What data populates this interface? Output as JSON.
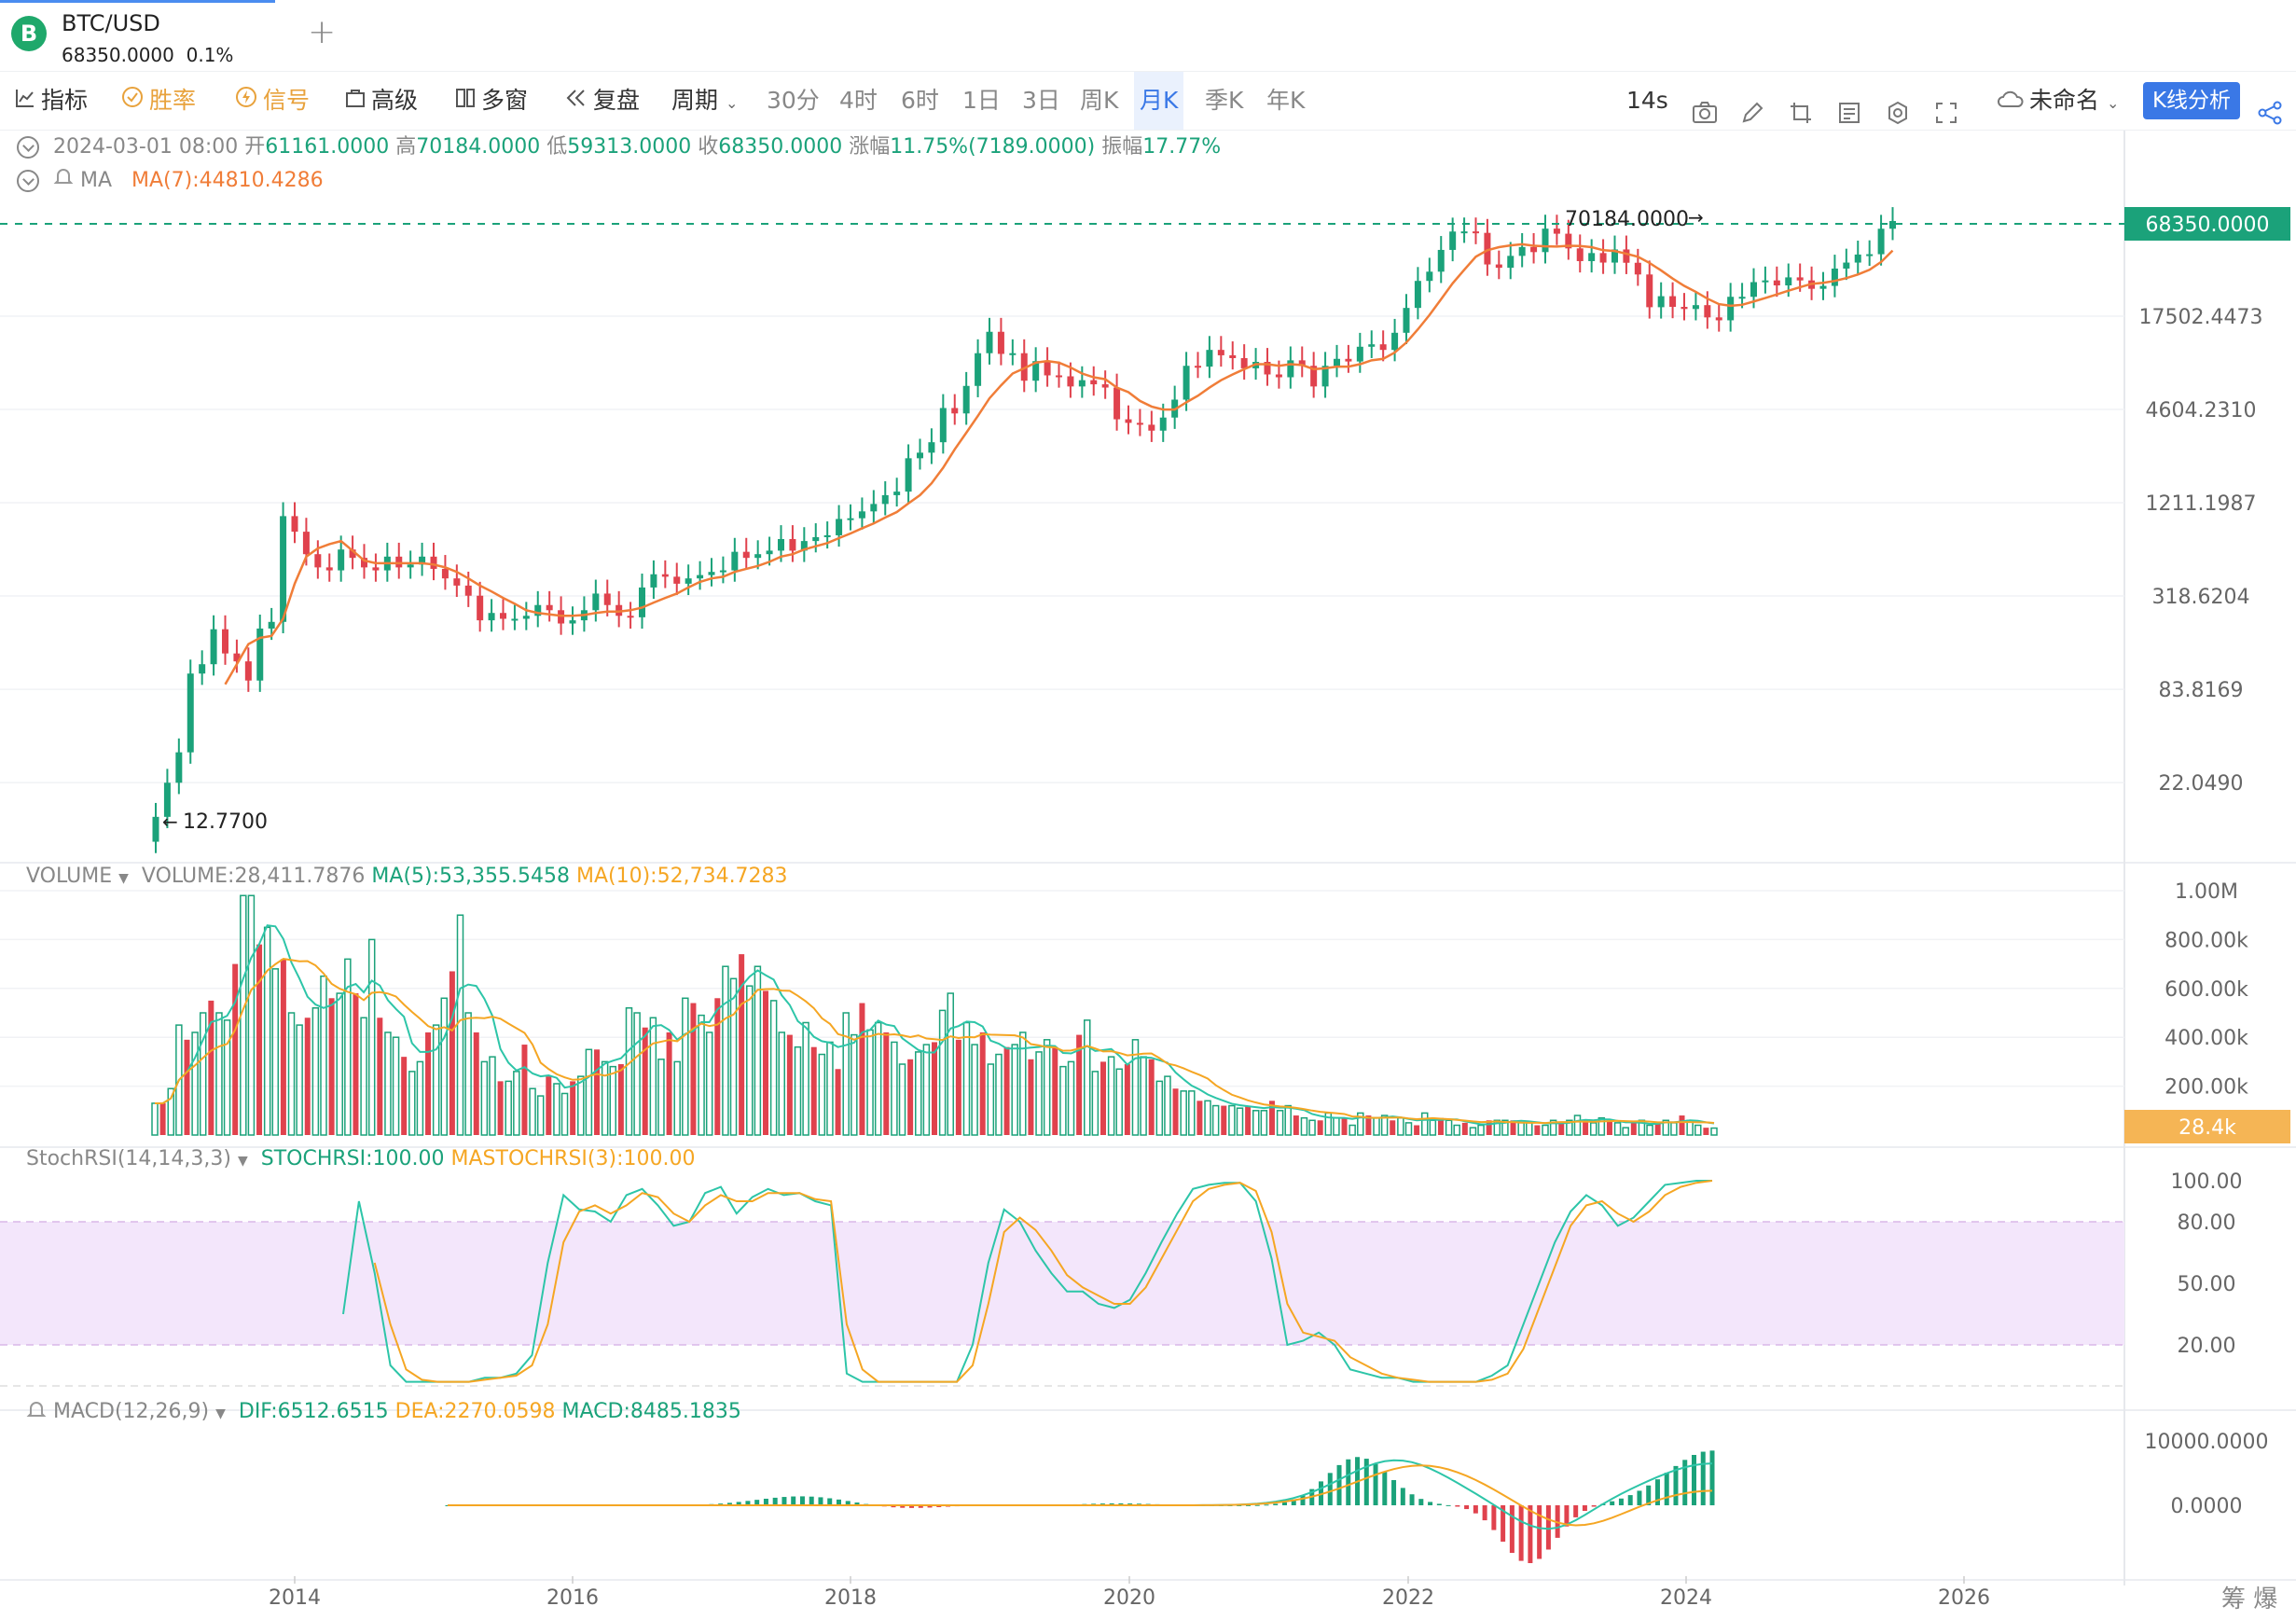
{
  "tab": {
    "symbol": "BTC/USD",
    "price": "68350.0000",
    "change": "0.1%",
    "logo": "B",
    "add_icon": "+"
  },
  "toolbar": {
    "indicators": "指标",
    "winrate": "胜率",
    "signal": "信号",
    "advanced": "高级",
    "multiwin": "多窗",
    "replay": "复盘",
    "period": "周期",
    "intervals": [
      "30分",
      "4时",
      "6时",
      "1日",
      "3日",
      "周K",
      "月K",
      "季K",
      "年K"
    ],
    "active_interval": "月K",
    "countdown": "14s",
    "layout_name": "未命名",
    "kline_btn": "K线分析"
  },
  "ohlc": {
    "date": "2024-03-01 08:00",
    "open_label": "开",
    "open": "61161.0000",
    "high_label": "高",
    "high": "70184.0000",
    "low_label": "低",
    "low": "59313.0000",
    "close_label": "收",
    "close": "68350.0000",
    "change_label": "涨幅",
    "change": "11.75%(7189.0000)",
    "amp_label": "振幅",
    "amp": "17.77%"
  },
  "ma_row": {
    "name": "MA",
    "ma7": "MA(7):44810.4286"
  },
  "volume_row": {
    "name": "VOLUME",
    "vol": "VOLUME:28,411.7876",
    "ma5": "MA(5):53,355.5458",
    "ma10": "MA(10):52,734.7283"
  },
  "stoch_row": {
    "name": "StochRSI(14,14,3,3)",
    "k": "STOCHRSI:100.00",
    "d": "MASTOCHRSI(3):100.00"
  },
  "macd_row": {
    "name": "MACD(12,26,9)",
    "dif": "DIF:6512.6515",
    "dea": "DEA:2270.0598",
    "macd": "MACD:8485.1835"
  },
  "footer": {
    "right_text": "筹 爆"
  },
  "colors": {
    "up": "#1ba27a",
    "down": "#e0424d",
    "ma": "#f07d38",
    "vol_ma5": "#2dc5a8",
    "vol_ma10": "#f5a623",
    "accent": "#3a78e6",
    "band": "#f3e6fb"
  },
  "chart_data": [
    {
      "type": "candlestick",
      "title": "BTC/USD",
      "scale": "log",
      "y_ticks": [
        "17502.4473",
        "4604.2310",
        "1211.1987",
        "318.6204",
        "83.8169",
        "22.0490"
      ],
      "x_ticks": [
        "2014",
        "2016",
        "2018",
        "2020",
        "2022",
        "2024",
        "2026"
      ],
      "last_price_label": "68350.0000",
      "max_label": "70184.0000",
      "min_label": "12.7700",
      "close_approx": [
        13.5,
        22,
        34,
        105,
        120,
        198,
        140,
        125,
        95,
        200,
        220,
        1000,
        800,
        580,
        480,
        460,
        620,
        550,
        480,
        460,
        560,
        480,
        500,
        560,
        470,
        410,
        370,
        320,
        225,
        250,
        230,
        230,
        240,
        280,
        260,
        215,
        225,
        260,
        330,
        280,
        240,
        235,
        360,
        435,
        420,
        380,
        410,
        430,
        450,
        460,
        600,
        550,
        580,
        610,
        720,
        610,
        700,
        740,
        760,
        960,
        970,
        1070,
        1190,
        1350,
        1420,
        2290,
        2480,
        2880,
        4700,
        4350,
        6450,
        10300,
        14000,
        10200,
        10300,
        6950,
        9200,
        7500,
        7400,
        6400,
        7000,
        6600,
        6300,
        4000,
        3800,
        3700,
        3400,
        4100,
        5300,
        8600,
        8500,
        10800,
        10000,
        9600,
        8300,
        9100,
        7600,
        7300,
        9300,
        8600,
        6400,
        8600,
        9500,
        9150,
        11300,
        11700,
        10800,
        13800,
        19700,
        29000,
        33100,
        45200,
        58800,
        58900,
        57700,
        36700,
        35000,
        41500,
        47100,
        43800,
        61300,
        57000,
        46200,
        38500,
        43200,
        37700,
        45500,
        37600,
        31800,
        19900,
        23300,
        20000,
        19400,
        20500,
        17200,
        16500,
        23100,
        23100,
        28500,
        29200,
        27200,
        30500,
        29200,
        25900,
        27000,
        34600,
        37700,
        42300,
        42500,
        61200,
        68350
      ],
      "ma7_approx": [
        null,
        null,
        null,
        null,
        null,
        null,
        90,
        120,
        160,
        175,
        180,
        230,
        380,
        560,
        630,
        670,
        700,
        610,
        530,
        510,
        510,
        510,
        510,
        510,
        500,
        480,
        450,
        410,
        370,
        340,
        310,
        285,
        260,
        250,
        245,
        240,
        240,
        243,
        250,
        255,
        255,
        260,
        270,
        290,
        310,
        330,
        360,
        390,
        410,
        420,
        450,
        470,
        490,
        520,
        560,
        580,
        620,
        650,
        680,
        730,
        780,
        840,
        900,
        980,
        1060,
        1200,
        1350,
        1600,
        2000,
        2600,
        3300,
        4200,
        5400,
        6500,
        7700,
        8300,
        9000,
        9200,
        9000,
        8400,
        7700,
        7300,
        7100,
        6300,
        5900,
        5200,
        4800,
        4600,
        4600,
        5100,
        5600,
        6300,
        7000,
        7600,
        8200,
        8800,
        8800,
        8600,
        8800,
        8700,
        8200,
        8300,
        8500,
        8500,
        8800,
        9300,
        9500,
        10400,
        12000,
        14500,
        17800,
        22300,
        28000,
        34000,
        41000,
        45000,
        47000,
        48200,
        49000,
        48000,
        47600,
        47400,
        48000,
        47800,
        47000,
        45000,
        44500,
        42800,
        41000,
        37500,
        33700,
        30000,
        27000,
        24800,
        22500,
        20800,
        20300,
        20600,
        21600,
        22700,
        23900,
        25200,
        26500,
        27800,
        28200,
        29000,
        30200,
        31800,
        34000,
        38000,
        44810
      ],
      "volume_approx": "see chart",
      "ylim": [
        12.77,
        70184
      ]
    },
    {
      "type": "bar",
      "title": "VOLUME",
      "y_ticks": [
        "1.00M",
        "800.00k",
        "600.00k",
        "400.00k",
        "200.00k"
      ],
      "last_value_label": "28.4k",
      "series": [
        {
          "name": "VOLUME",
          "values": [
            130000,
            130000,
            190000,
            450000,
            390000,
            420000,
            500000,
            550000,
            500000,
            470000,
            700000,
            980000,
            980000,
            780000,
            850000,
            680000,
            720000,
            500000,
            450000,
            480000,
            520000,
            650000,
            560000,
            580000,
            720000,
            580000,
            480000,
            800000,
            480000,
            420000,
            400000,
            320000,
            260000,
            300000,
            420000,
            450000,
            560000,
            670000,
            900000,
            500000,
            420000,
            300000,
            320000,
            220000,
            220000,
            260000,
            370000,
            190000,
            160000,
            240000,
            210000,
            170000,
            220000,
            240000,
            350000,
            350000,
            300000,
            280000,
            290000,
            520000,
            500000,
            440000,
            480000,
            310000,
            420000,
            300000,
            560000,
            540000,
            490000,
            420000,
            560000,
            690000,
            640000,
            740000,
            610000,
            690000,
            590000,
            550000,
            420000,
            410000,
            360000,
            460000,
            360000,
            330000,
            380000,
            270000,
            500000,
            410000,
            540000,
            430000,
            460000,
            420000,
            380000,
            290000,
            310000,
            340000,
            370000,
            380000,
            510000,
            580000,
            390000,
            460000,
            370000,
            420000,
            290000,
            330000,
            360000,
            370000,
            420000,
            310000,
            340000,
            390000,
            360000,
            280000,
            300000,
            410000,
            470000,
            260000,
            300000,
            320000,
            270000,
            290000,
            390000,
            320000,
            310000,
            220000,
            240000,
            190000,
            180000,
            180000,
            140000,
            140000,
            120000,
            120000,
            120000,
            110000,
            120000,
            100000,
            100000,
            140000,
            100000,
            120000,
            80000,
            70000,
            60000,
            60000,
            90000,
            70000,
            70000,
            40000,
            90000,
            80000,
            70000,
            80000,
            60000,
            70000,
            50000,
            40000,
            90000,
            60000,
            70000,
            60000,
            40000,
            50000,
            30000,
            40000,
            60000,
            60000,
            60000,
            60000,
            50000,
            50000,
            40000,
            40000,
            60000,
            50000,
            60000,
            80000,
            60000,
            50000,
            70000,
            60000,
            50000,
            30000,
            50000,
            60000,
            40000,
            50000,
            60000,
            50000,
            80000,
            60000,
            40000,
            30000,
            28400
          ]
        },
        {
          "name": "MA(5)"
        },
        {
          "name": "MA(10)"
        }
      ]
    },
    {
      "type": "line",
      "title": "StochRSI(14,14,3,3)",
      "y_ticks": [
        "100.00",
        "80.00",
        "50.00",
        "20.00"
      ],
      "ylim": [
        0,
        100
      ],
      "series": [
        {
          "name": "STOCHRSI",
          "values": [
            35,
            90,
            55,
            10,
            2,
            2,
            2,
            2,
            2,
            4,
            4,
            6,
            15,
            60,
            93,
            86,
            85,
            80,
            93,
            96,
            88,
            78,
            80,
            94,
            97,
            84,
            92,
            96,
            93,
            94,
            90,
            88,
            6,
            2,
            2,
            2,
            2,
            2,
            2,
            2,
            20,
            60,
            86,
            80,
            66,
            55,
            46,
            46,
            40,
            38,
            42,
            55,
            70,
            84,
            96,
            98,
            99,
            99,
            90,
            62,
            20,
            22,
            26,
            20,
            8,
            6,
            4,
            4,
            2,
            2,
            2,
            2,
            2,
            5,
            10,
            30,
            50,
            70,
            85,
            93,
            88,
            78,
            82,
            90,
            98,
            99,
            100,
            100
          ]
        },
        {
          "name": "MASTOCHRSI(3)",
          "values": [
            null,
            null,
            60,
            30,
            8,
            3,
            2,
            2,
            2,
            3,
            4,
            5,
            10,
            30,
            70,
            85,
            88,
            84,
            88,
            94,
            92,
            84,
            80,
            88,
            93,
            90,
            90,
            94,
            94,
            94,
            91,
            90,
            30,
            8,
            2,
            2,
            2,
            2,
            2,
            2,
            10,
            40,
            75,
            82,
            76,
            66,
            54,
            48,
            44,
            40,
            40,
            48,
            62,
            76,
            90,
            96,
            98,
            99,
            95,
            75,
            40,
            26,
            24,
            22,
            14,
            10,
            6,
            4,
            3,
            2,
            2,
            2,
            2,
            3,
            6,
            18,
            38,
            58,
            78,
            88,
            90,
            84,
            80,
            85,
            93,
            97,
            99,
            100
          ]
        }
      ]
    },
    {
      "type": "bar",
      "title": "MACD(12,26,9)",
      "y_ticks": [
        "10000.0000",
        "0.0000"
      ],
      "series": [
        {
          "name": "DIF"
        },
        {
          "name": "DEA"
        },
        {
          "name": "MACD"
        }
      ]
    }
  ]
}
